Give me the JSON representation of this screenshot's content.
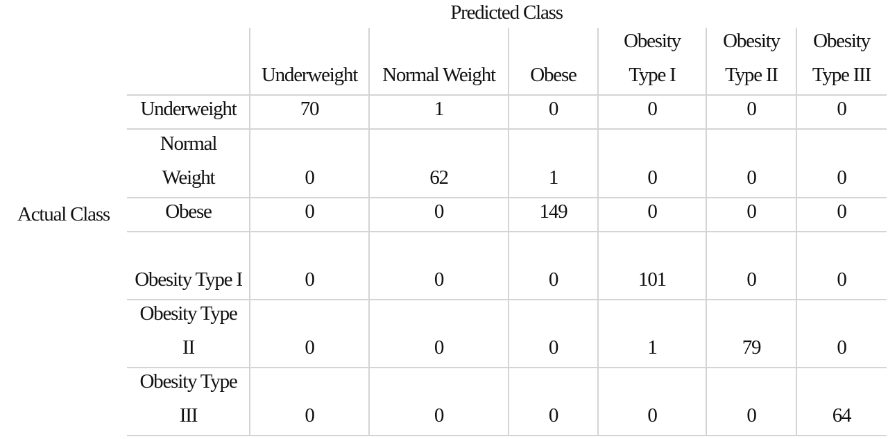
{
  "predicted_label": "Predicted Class",
  "actual_label": "Actual Class",
  "columns": [
    "Underweight",
    "Normal Weight",
    "Obese",
    "Obesity Type I",
    "Obesity Type II",
    "Obesity Type III"
  ],
  "rows": [
    {
      "label": "Underweight",
      "values": [
        70,
        1,
        0,
        0,
        0,
        0
      ]
    },
    {
      "label": "Normal Weight",
      "values": [
        0,
        62,
        1,
        0,
        0,
        0
      ]
    },
    {
      "label": "Obese",
      "values": [
        0,
        0,
        149,
        0,
        0,
        0
      ]
    },
    {
      "label": "Obesity Type I",
      "values": [
        0,
        0,
        0,
        101,
        0,
        0
      ]
    },
    {
      "label": "Obesity Type II",
      "values": [
        0,
        0,
        0,
        1,
        79,
        0
      ]
    },
    {
      "label": "Obesity Type III",
      "values": [
        0,
        0,
        0,
        0,
        0,
        64
      ]
    }
  ]
}
